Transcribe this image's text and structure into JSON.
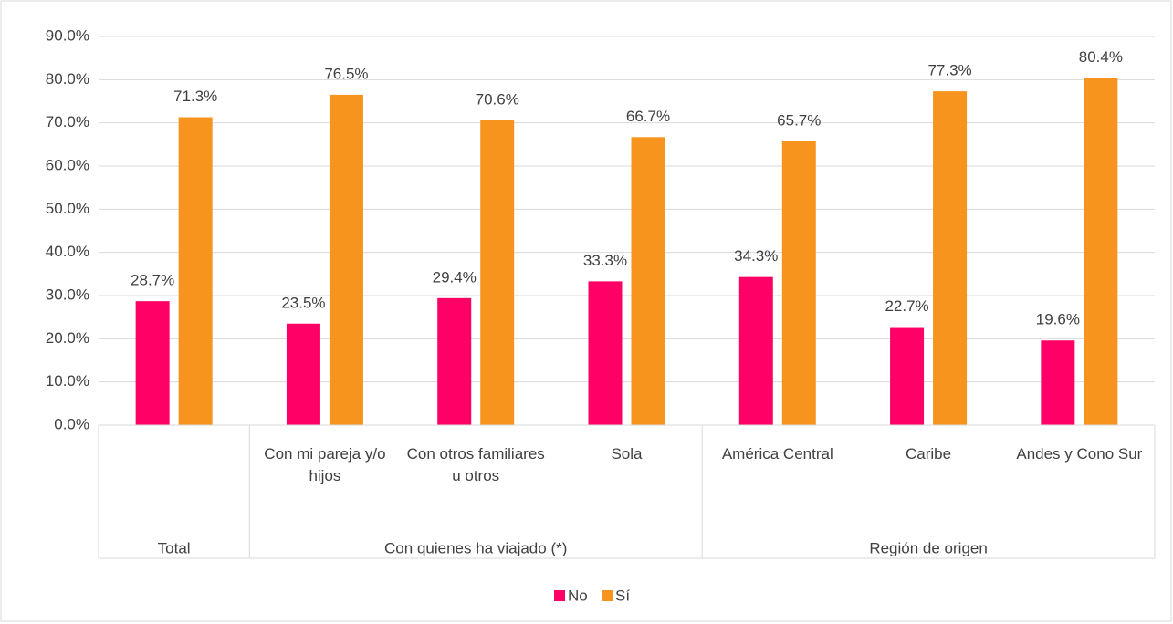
{
  "chart_data": {
    "type": "bar",
    "groups": [
      {
        "label": "Total",
        "categories": [
          null
        ]
      },
      {
        "label": "Con quienes ha viajado (*)",
        "categories": [
          "Con mi pareja y/o hijos",
          "Con otros familiares u otros",
          "Sola"
        ]
      },
      {
        "label": "Región de origen",
        "categories": [
          "América Central",
          "Caribe",
          "Andes y Cono Sur"
        ]
      }
    ],
    "series": [
      {
        "name": "No",
        "color": "#ff0066",
        "values": [
          28.7,
          23.5,
          29.4,
          33.3,
          34.3,
          22.7,
          19.6
        ],
        "value_labels": [
          "28.7%",
          "23.5%",
          "29.4%",
          "33.3%",
          "34.3%",
          "22.7%",
          "19.6%"
        ]
      },
      {
        "name": "Sí",
        "color": "#f7941d",
        "values": [
          71.3,
          76.5,
          70.6,
          66.7,
          65.7,
          77.3,
          80.4
        ],
        "value_labels": [
          "71.3%",
          "76.5%",
          "70.6%",
          "66.7%",
          "65.7%",
          "77.3%",
          "80.4%"
        ]
      }
    ],
    "ylim": [
      0,
      90
    ],
    "yticks": [
      {
        "value": 0,
        "label": "0.0%"
      },
      {
        "value": 10,
        "label": "10.0%"
      },
      {
        "value": 20,
        "label": "20.0%"
      },
      {
        "value": 30,
        "label": "30.0%"
      },
      {
        "value": 40,
        "label": "40.0%"
      },
      {
        "value": 50,
        "label": "50.0%"
      },
      {
        "value": 60,
        "label": "60.0%"
      },
      {
        "value": 70,
        "label": "70.0%"
      },
      {
        "value": 80,
        "label": "80.0%"
      },
      {
        "value": 90,
        "label": "90.0%"
      }
    ],
    "grid": true,
    "legend": "bottom"
  }
}
